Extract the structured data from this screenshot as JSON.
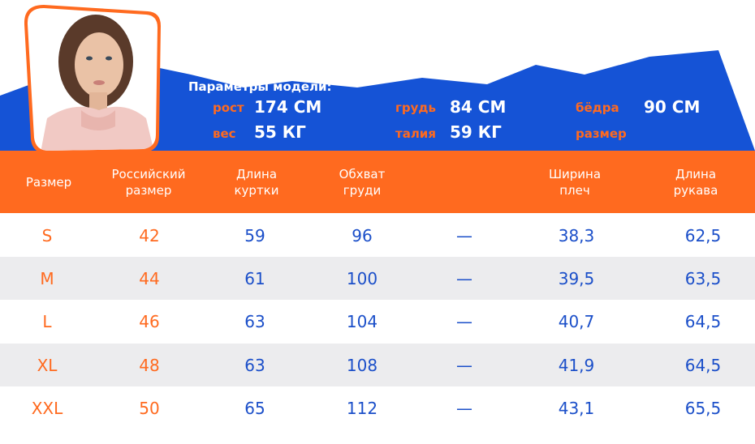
{
  "colors": {
    "blue": "#1553d6",
    "orange": "#ff6a1f",
    "row_alt": "#ececee",
    "value_blue": "#1b4fc9"
  },
  "model": {
    "title": "Параметры модели:",
    "height_label": "рост",
    "height_value": "174 СМ",
    "weight_label": "вес",
    "weight_value": "55 КГ",
    "chest_label": "грудь",
    "chest_value": "84 СМ",
    "waist_label": "талия",
    "waist_value": "59 КГ",
    "hips_label": "бёдра",
    "hips_value": "90 СМ",
    "size_label": "размер",
    "size_value": ""
  },
  "table": {
    "headers": [
      "Размер",
      "Российский\nразмер",
      "Длина\nкуртки",
      "Обхват\nгруди",
      "",
      "Ширина\nплеч",
      "Длина\nрукава"
    ],
    "rows": [
      [
        "S",
        "42",
        "59",
        "96",
        "—",
        "38,3",
        "62,5"
      ],
      [
        "M",
        "44",
        "61",
        "100",
        "—",
        "39,5",
        "63,5"
      ],
      [
        "L",
        "46",
        "63",
        "104",
        "—",
        "40,7",
        "64,5"
      ],
      [
        "XL",
        "48",
        "63",
        "108",
        "—",
        "41,9",
        "64,5"
      ],
      [
        "XXL",
        "50",
        "65",
        "112",
        "—",
        "43,1",
        "65,5"
      ]
    ]
  }
}
